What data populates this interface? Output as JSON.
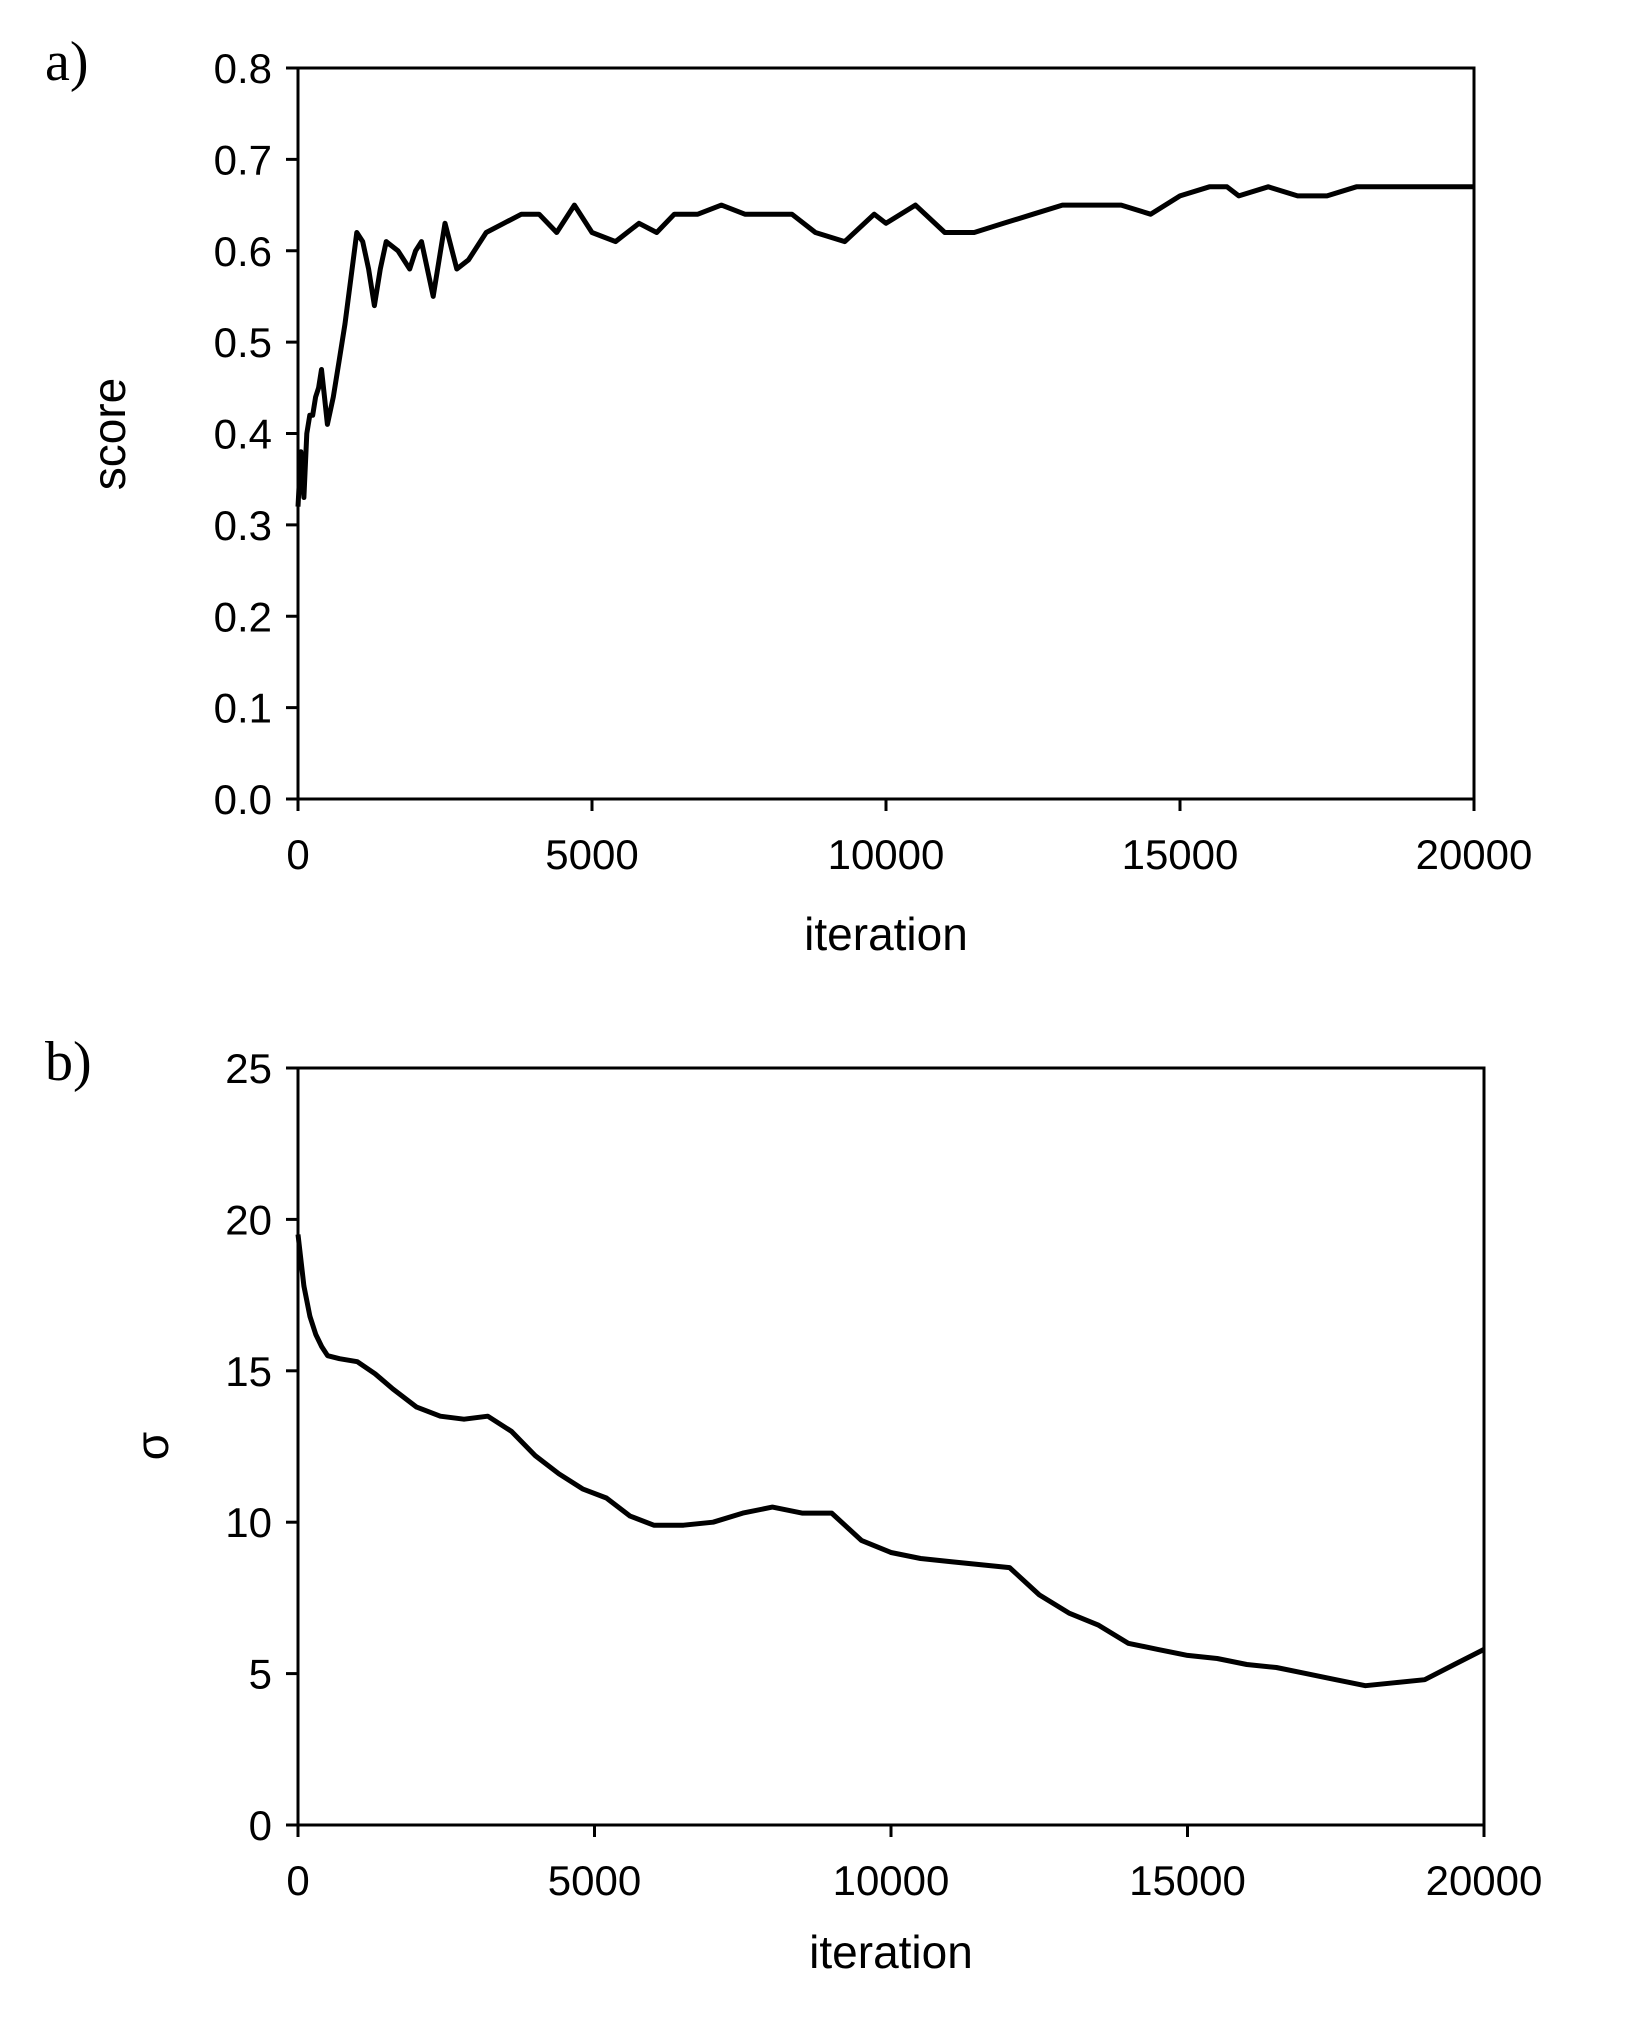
{
  "chart_data": [
    {
      "type": "line",
      "panel_label": "a)",
      "xlabel": "iteration",
      "ylabel": "score",
      "xlim": [
        0,
        20000
      ],
      "ylim": [
        0.0,
        0.8
      ],
      "xticks": [
        0,
        5000,
        10000,
        15000,
        20000
      ],
      "xtick_labels": [
        "0",
        "5000",
        "10000",
        "15000",
        "20000"
      ],
      "yticks": [
        0.0,
        0.1,
        0.2,
        0.3,
        0.4,
        0.5,
        0.6,
        0.7,
        0.8
      ],
      "ytick_labels": [
        "0.0",
        "0.1",
        "0.2",
        "0.3",
        "0.4",
        "0.5",
        "0.6",
        "0.7",
        "0.8"
      ],
      "grid": false,
      "line_color": "#000000",
      "series": [
        {
          "x": [
            0,
            50,
            100,
            150,
            200,
            250,
            300,
            350,
            400,
            450,
            500,
            600,
            700,
            800,
            900,
            1000,
            1100,
            1200,
            1300,
            1400,
            1500,
            1700,
            1900,
            2000,
            2100,
            2300,
            2500,
            2700,
            2900,
            3200,
            3500,
            3800,
            4100,
            4400,
            4700,
            5000,
            5400,
            5800,
            6100,
            6400,
            6800,
            7200,
            7600,
            8000,
            8400,
            8800,
            9300,
            9800,
            10000,
            10500,
            11000,
            11500,
            12000,
            12500,
            13000,
            13500,
            14000,
            14500,
            15000,
            15500,
            15800,
            16000,
            16500,
            17000,
            17500,
            18000,
            18500,
            19000,
            19500,
            20000
          ],
          "y": [
            0.32,
            0.38,
            0.33,
            0.4,
            0.42,
            0.42,
            0.44,
            0.45,
            0.47,
            0.44,
            0.41,
            0.44,
            0.48,
            0.52,
            0.57,
            0.62,
            0.61,
            0.58,
            0.54,
            0.58,
            0.61,
            0.6,
            0.58,
            0.6,
            0.61,
            0.55,
            0.63,
            0.58,
            0.59,
            0.62,
            0.63,
            0.64,
            0.64,
            0.62,
            0.65,
            0.62,
            0.61,
            0.63,
            0.62,
            0.64,
            0.64,
            0.65,
            0.64,
            0.64,
            0.64,
            0.62,
            0.61,
            0.64,
            0.63,
            0.65,
            0.62,
            0.62,
            0.63,
            0.64,
            0.65,
            0.65,
            0.65,
            0.64,
            0.66,
            0.67,
            0.67,
            0.66,
            0.67,
            0.66,
            0.66,
            0.67,
            0.67,
            0.67,
            0.67,
            0.67
          ]
        }
      ]
    },
    {
      "type": "line",
      "panel_label": "b)",
      "xlabel": "iteration",
      "ylabel": "σ",
      "xlim": [
        0,
        20000
      ],
      "ylim": [
        0,
        25
      ],
      "xticks": [
        0,
        5000,
        10000,
        15000,
        20000
      ],
      "xtick_labels": [
        "0",
        "5000",
        "10000",
        "15000",
        "20000"
      ],
      "yticks": [
        0,
        5,
        10,
        15,
        20,
        25
      ],
      "ytick_labels": [
        "0",
        "5",
        "10",
        "15",
        "20",
        "25"
      ],
      "grid": false,
      "line_color": "#000000",
      "series": [
        {
          "x": [
            0,
            100,
            200,
            300,
            400,
            500,
            700,
            1000,
            1300,
            1600,
            2000,
            2400,
            2800,
            3200,
            3600,
            4000,
            4400,
            4800,
            5200,
            5600,
            6000,
            6500,
            7000,
            7500,
            8000,
            8500,
            9000,
            9500,
            10000,
            10500,
            11000,
            11500,
            12000,
            12500,
            13000,
            13500,
            14000,
            14500,
            15000,
            15500,
            16000,
            16500,
            17000,
            17500,
            18000,
            18500,
            19000,
            19500,
            20000
          ],
          "y": [
            19.5,
            17.8,
            16.8,
            16.2,
            15.8,
            15.5,
            15.4,
            15.3,
            14.9,
            14.4,
            13.8,
            13.5,
            13.4,
            13.5,
            13.0,
            12.2,
            11.6,
            11.1,
            10.8,
            10.2,
            9.9,
            9.9,
            10.0,
            10.3,
            10.5,
            10.3,
            10.3,
            9.4,
            9.0,
            8.8,
            8.7,
            8.6,
            8.5,
            7.6,
            7.0,
            6.6,
            6.0,
            5.8,
            5.6,
            5.5,
            5.3,
            5.2,
            5.0,
            4.8,
            4.6,
            4.7,
            4.8,
            5.3,
            5.8
          ]
        }
      ]
    }
  ]
}
